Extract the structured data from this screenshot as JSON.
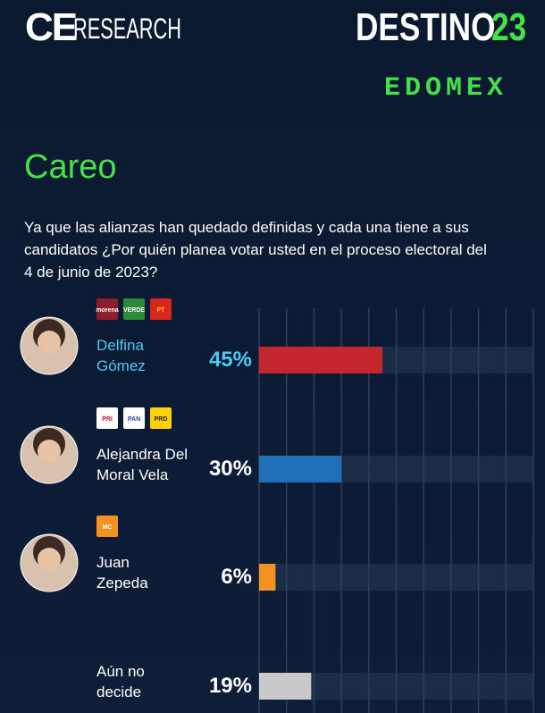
{
  "header": {
    "logo_left": "CE",
    "logo_left_rest": "RESEARCH",
    "brand": "DESTINO",
    "brand_number": "23",
    "region": "EDOMEX"
  },
  "chart_data": {
    "type": "bar",
    "orientation": "horizontal",
    "title": "Careo",
    "subtitle": "Ya que las alianzas han quedado definidas y cada una tiene a sus candidatos ¿Por quién planea votar usted en el proceso electoral del 4 de junio de 2023?",
    "categories": [
      "Delfina\nGómez",
      "Alejandra Del\nMoral Vela",
      "Juan\nZepeda",
      "Aún no\ndecide"
    ],
    "parties": [
      [
        "morena",
        "VERDE",
        "PT"
      ],
      [
        "PRI",
        "PAN",
        "PRD"
      ],
      [
        "MC"
      ],
      []
    ],
    "values": [
      45,
      30,
      6,
      19
    ],
    "value_labels": [
      "45%",
      "30%",
      "6%",
      "19%"
    ],
    "colors": [
      "#c4262e",
      "#1f70b8",
      "#f39221",
      "#c9c9c9"
    ],
    "xlim": [
      0,
      100
    ],
    "xticks": [
      0,
      10,
      20,
      30,
      40,
      50,
      60,
      70,
      80,
      90,
      100
    ],
    "grid": true
  }
}
